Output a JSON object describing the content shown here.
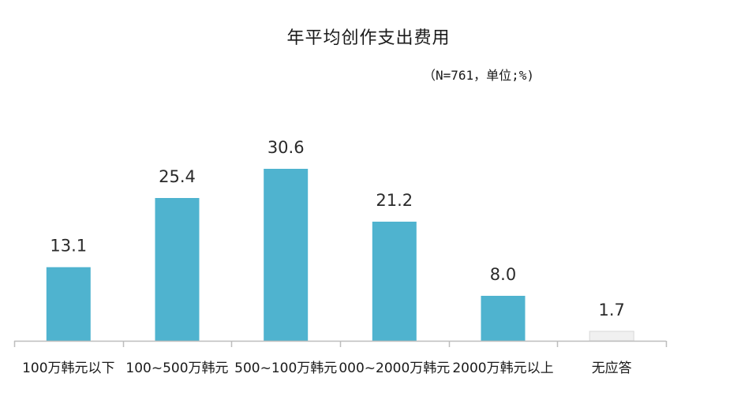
{
  "chart_data": {
    "type": "bar",
    "title": "年平均创作支出费用",
    "subtitle": "（N=761，单位;%)",
    "categories": [
      "100万韩元以下",
      "100~500万韩元",
      "500~100万韩元",
      "000~2000万韩元",
      "2000万韩元以上",
      "无应答"
    ],
    "values": [
      13.1,
      25.4,
      30.6,
      21.2,
      8.0,
      1.7
    ],
    "value_labels": [
      "13.1",
      "25.4",
      "30.6",
      "21.2",
      "8.0",
      "1.7"
    ],
    "xlabel": "",
    "ylabel": "",
    "ylim": [
      0,
      40
    ],
    "grid": false,
    "legend": "none",
    "colors": {
      "bar": "#4fb3cf",
      "bar_last": "#f0f0f0",
      "axis": "#bdbdbd"
    }
  }
}
